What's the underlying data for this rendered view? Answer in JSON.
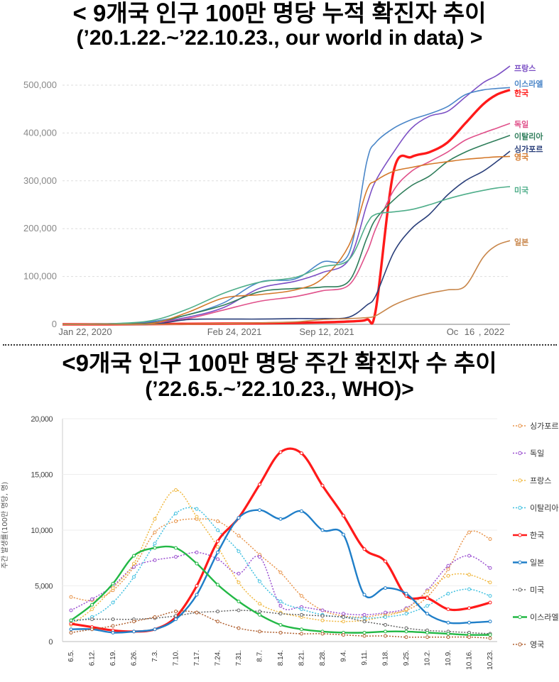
{
  "titles": {
    "chart1_line1": "< 9개국 인구 100만 명당 누적 확진자 추이",
    "chart1_line2": "(’20.1.22.~’22.10.23., our world in data) >",
    "chart2_line1": "<9개국 인구 100만 명당 주간 확진자 수 추이",
    "chart2_line2": "(’22.6.5.~’22.10.23., WHO)>"
  },
  "chart_data": [
    {
      "type": "line",
      "title": "< 9개국 인구 100만 명당 누적 확진자 추이 (’20.1.22.~’22.10.23., our world in data) >",
      "xlabel": "",
      "ylabel": "",
      "ylim": [
        0,
        500000
      ],
      "yticks": [
        "0",
        "100,000",
        "200,000",
        "300,000",
        "400,000",
        "500,000"
      ],
      "ytick_values": [
        0,
        100000,
        200000,
        300000,
        400000,
        500000
      ],
      "xticks": [
        "Jan 22, 2020",
        "Feb 24, 2021",
        "Sep 12, 2021",
        "Oc",
        "16",
        ", 2022"
      ],
      "x": [
        0,
        0.1,
        0.2,
        0.28,
        0.36,
        0.44,
        0.52,
        0.58,
        0.64,
        0.68,
        0.7,
        0.74,
        0.78,
        0.82,
        0.86,
        0.9,
        0.94,
        0.97,
        1.0
      ],
      "series": [
        {
          "name": "프랑스",
          "color": "#7b4fc4",
          "values": [
            0,
            1000,
            4000,
            15000,
            35000,
            75000,
            90000,
            108000,
            135000,
            250000,
            300000,
            360000,
            410000,
            435000,
            445000,
            475000,
            505000,
            520000,
            540000
          ]
        },
        {
          "name": "이스라엘",
          "color": "#4a86c8",
          "values": [
            0,
            1000,
            6000,
            20000,
            45000,
            88000,
            95000,
            130000,
            148000,
            340000,
            380000,
            410000,
            428000,
            440000,
            455000,
            480000,
            490000,
            493000,
            495000
          ]
        },
        {
          "name": "한국",
          "color": "#ff1a1a",
          "values": [
            0,
            0,
            500,
            1000,
            1500,
            2000,
            3000,
            4000,
            6000,
            10000,
            30000,
            320000,
            350000,
            360000,
            380000,
            420000,
            460000,
            480000,
            490000
          ]
        },
        {
          "name": "독일",
          "color": "#e0508a",
          "values": [
            0,
            500,
            3000,
            12000,
            30000,
            48000,
            58000,
            70000,
            82000,
            150000,
            200000,
            280000,
            320000,
            340000,
            360000,
            385000,
            400000,
            410000,
            420000
          ]
        },
        {
          "name": "이탈리아",
          "color": "#2e7d5a",
          "values": [
            0,
            1000,
            3000,
            20000,
            40000,
            68000,
            75000,
            78000,
            90000,
            180000,
            220000,
            260000,
            290000,
            310000,
            340000,
            360000,
            375000,
            385000,
            395000
          ]
        },
        {
          "name": "싱가포르",
          "color": "#2a3f7a",
          "values": [
            0,
            0,
            200,
            10000,
            11000,
            11000,
            12000,
            12000,
            15000,
            40000,
            60000,
            150000,
            200000,
            230000,
            270000,
            300000,
            320000,
            340000,
            362000
          ]
        },
        {
          "name": "영국",
          "color": "#d4782a",
          "values": [
            0,
            500,
            2000,
            25000,
            55000,
            62000,
            72000,
            95000,
            165000,
            280000,
            300000,
            320000,
            328000,
            335000,
            340000,
            345000,
            348000,
            350000,
            351000
          ]
        },
        {
          "name": "미국",
          "color": "#4fae8a",
          "values": [
            0,
            1000,
            8000,
            32000,
            65000,
            88000,
            98000,
            120000,
            135000,
            210000,
            230000,
            235000,
            240000,
            250000,
            262000,
            272000,
            280000,
            285000,
            288000
          ]
        },
        {
          "name": "일본",
          "color": "#c8864a",
          "values": [
            0,
            0,
            200,
            500,
            1500,
            3000,
            5000,
            10000,
            12000,
            14000,
            18000,
            40000,
            55000,
            65000,
            72000,
            80000,
            140000,
            165000,
            175000
          ]
        }
      ]
    },
    {
      "type": "line",
      "title": "<9개국 인구 100만 명당 주간 확진자 수 추이 (’22.6.5.~’22.10.23., WHO)>",
      "xlabel": "",
      "ylabel": "주간 발생률(100만 명당, 명)",
      "ylim": [
        0,
        20000
      ],
      "yticks": [
        "0",
        "5,000",
        "10,000",
        "15,000",
        "20,000"
      ],
      "ytick_values": [
        0,
        5000,
        10000,
        15000,
        20000
      ],
      "categories": [
        "6.5.",
        "6.12.",
        "6.19.",
        "6.26.",
        "7.3.",
        "7.10.",
        "7.17.",
        "7.24.",
        "7.31.",
        "8.7.",
        "8.14.",
        "8.21.",
        "8.28.",
        "9.4.",
        "9.11.",
        "9.18.",
        "9.25.",
        "10.2.",
        "10.9.",
        "10.16.",
        "10.23."
      ],
      "series": [
        {
          "name": "싱가포르",
          "color": "#e8944a",
          "dash": "dot",
          "values": [
            4000,
            3700,
            4600,
            6700,
            9800,
            10800,
            11000,
            10800,
            9500,
            7800,
            6200,
            4100,
            2800,
            2300,
            2200,
            2500,
            2800,
            4000,
            6500,
            9800,
            9200
          ]
        },
        {
          "name": "독일",
          "color": "#9a4fd0",
          "dash": "dot",
          "values": [
            2800,
            3800,
            5000,
            6700,
            7300,
            7600,
            8000,
            7400,
            6100,
            7600,
            3200,
            3100,
            2800,
            2500,
            2400,
            2600,
            3000,
            4600,
            6800,
            7700,
            6600
          ]
        },
        {
          "name": "프랑스",
          "color": "#f0b840",
          "dash": "dot",
          "values": [
            1500,
            2900,
            4800,
            7000,
            11000,
            13600,
            11200,
            8500,
            5300,
            3400,
            2600,
            2200,
            1900,
            1800,
            1900,
            2300,
            2900,
            4500,
            5900,
            6000,
            5300
          ]
        },
        {
          "name": "이탈리아",
          "color": "#3fc0e0",
          "dash": "dot",
          "values": [
            1800,
            2200,
            3500,
            5800,
            8800,
            11500,
            11900,
            10000,
            8100,
            5400,
            3600,
            2900,
            2400,
            2200,
            2100,
            2200,
            2500,
            3200,
            4300,
            4700,
            4100
          ]
        },
        {
          "name": "한국",
          "color": "#ff1a1a",
          "dash": "solid",
          "width": 3.2,
          "values": [
            1600,
            1300,
            1000,
            900,
            1100,
            2200,
            5000,
            9000,
            11100,
            14100,
            17000,
            16900,
            14000,
            11300,
            8300,
            7200,
            4100,
            3900,
            2900,
            3000,
            3500
          ]
        },
        {
          "name": "일본",
          "color": "#1f7ec8",
          "dash": "solid",
          "width": 2.4,
          "values": [
            1100,
            1100,
            800,
            900,
            1100,
            2000,
            4200,
            8000,
            11100,
            11800,
            11000,
            11700,
            10000,
            9600,
            4200,
            4800,
            4300,
            2500,
            1700,
            1700,
            1800
          ]
        },
        {
          "name": "미국",
          "color": "#666666",
          "dash": "dot",
          "values": [
            1900,
            2000,
            2000,
            2000,
            2100,
            2300,
            2600,
            2700,
            2800,
            2700,
            2500,
            2400,
            2300,
            2200,
            1800,
            1500,
            1200,
            1000,
            900,
            800,
            700
          ]
        },
        {
          "name": "이스라엘",
          "color": "#22b845",
          "dash": "solid",
          "width": 2.4,
          "values": [
            1900,
            3300,
            5200,
            7700,
            8400,
            8400,
            7000,
            5100,
            3600,
            2400,
            1500,
            1100,
            900,
            800,
            800,
            900,
            900,
            800,
            700,
            600,
            600
          ]
        },
        {
          "name": "영국",
          "color": "#b06030",
          "dash": "dot",
          "values": [
            800,
            1100,
            1400,
            1800,
            2200,
            2700,
            2600,
            1800,
            1200,
            900,
            800,
            700,
            700,
            600,
            500,
            500,
            400,
            400,
            400,
            400,
            300
          ]
        }
      ]
    }
  ]
}
